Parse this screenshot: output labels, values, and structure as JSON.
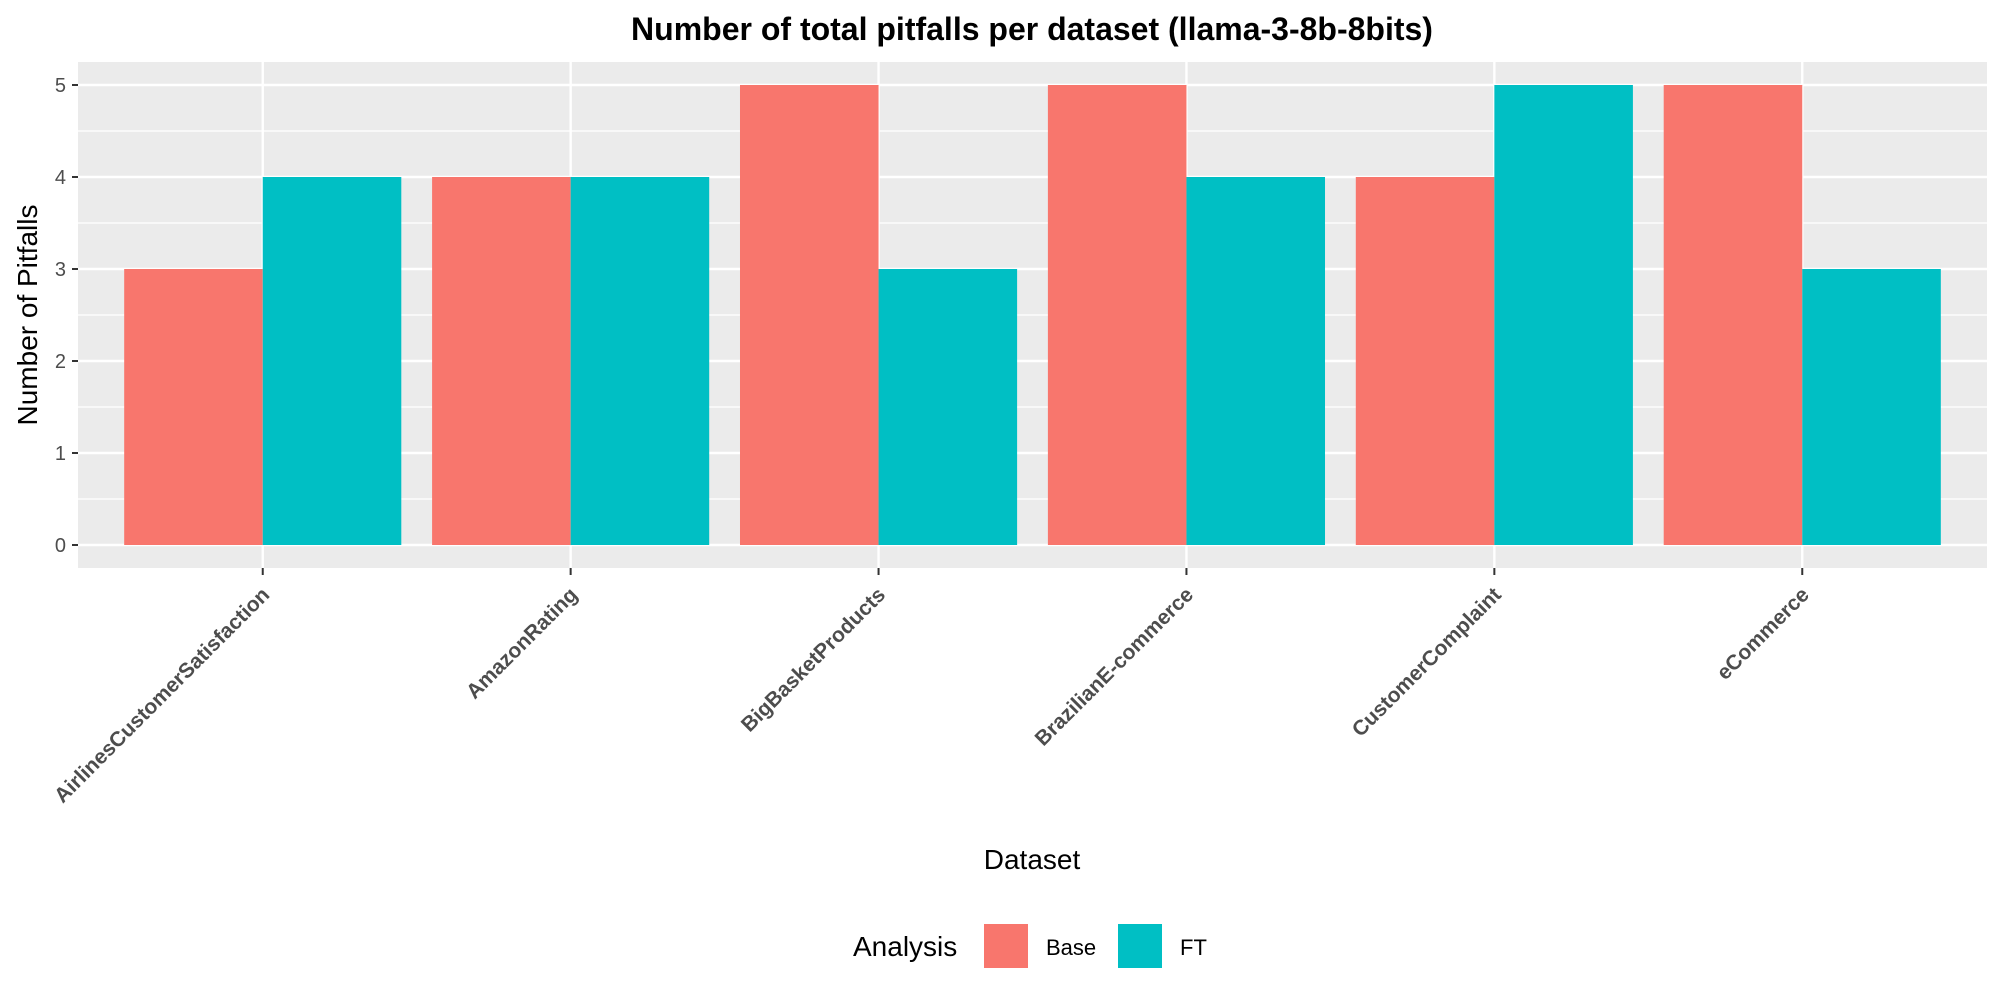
{
  "chart_data": {
    "type": "bar",
    "title": "Number of total pitfalls per dataset (llama-3-8b-8bits)",
    "xlabel": "Dataset",
    "ylabel": "Number of Pitfalls",
    "categories": [
      "AirlinesCustomerSatisfaction",
      "AmazonRating",
      "BigBasketProducts",
      "BrazilianE-commerce",
      "CustomerComplaint",
      "eCommerce"
    ],
    "series": [
      {
        "name": "Base",
        "color": "#F8766D",
        "values": [
          3,
          4,
          5,
          5,
          4,
          5
        ]
      },
      {
        "name": "FT",
        "color": "#00BFC4",
        "values": [
          4,
          4,
          3,
          4,
          5,
          3
        ]
      }
    ],
    "ylim": [
      -0.25,
      5.25
    ],
    "yticks": [
      0,
      1,
      2,
      3,
      4,
      5
    ],
    "grid": true,
    "panel_background": "#EBEBEB",
    "legend": {
      "title": "Analysis",
      "position": "bottom"
    }
  }
}
